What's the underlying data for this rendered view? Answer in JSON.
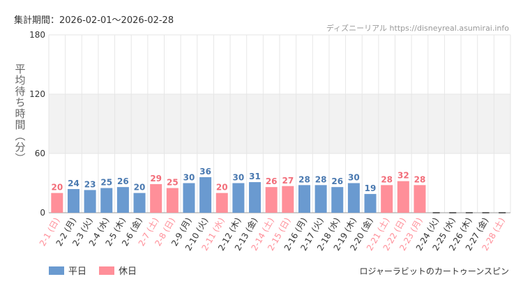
{
  "header": {
    "period": "集計期間：2026-02-01～2026-02-28",
    "credit": "ディズニーリアル https://disneyreal.asumirai.info"
  },
  "footer": {
    "attraction": "ロジャーラビットのカートゥーンスピン"
  },
  "colors": {
    "weekday": "#6a9ad0",
    "holiday": "#ff8f99",
    "weekday_label": "#4a79b0",
    "holiday_label": "#f26d79",
    "band": "#f2f2f2",
    "grid": "#e6e6e6"
  },
  "chart_data": {
    "type": "bar",
    "title": "",
    "xlabel": "",
    "ylabel": "平均待ち時間（分）",
    "ylim": [
      0,
      180
    ],
    "yticks": [
      "0",
      "60",
      "120",
      "180"
    ],
    "highlight_band": [
      60,
      120
    ],
    "legend": {
      "weekday": "平日",
      "holiday": "休日"
    },
    "categories": [
      "2-1 (日)",
      "2-2 (月)",
      "2-3 (火)",
      "2-4 (水)",
      "2-5 (木)",
      "2-6 (金)",
      "2-7 (土)",
      "2-8 (日)",
      "2-9 (月)",
      "2-10 (火)",
      "2-11 (水)",
      "2-12 (木)",
      "2-13 (金)",
      "2-14 (土)",
      "2-15 (日)",
      "2-16 (月)",
      "2-17 (火)",
      "2-18 (水)",
      "2-19 (木)",
      "2-20 (金)",
      "2-21 (土)",
      "2-22 (日)",
      "2-23 (月)",
      "2-24 (火)",
      "2-25 (水)",
      "2-26 (木)",
      "2-27 (金)",
      "2-28 (土)"
    ],
    "holiday": [
      true,
      false,
      false,
      false,
      false,
      false,
      true,
      true,
      false,
      false,
      true,
      false,
      false,
      true,
      true,
      false,
      false,
      false,
      false,
      false,
      true,
      true,
      true,
      false,
      false,
      false,
      false,
      true
    ],
    "values": [
      20,
      24,
      23,
      25,
      26,
      20,
      29,
      25,
      30,
      36,
      20,
      30,
      31,
      26,
      27,
      28,
      28,
      26,
      30,
      19,
      28,
      32,
      28,
      null,
      null,
      null,
      null,
      null
    ]
  }
}
